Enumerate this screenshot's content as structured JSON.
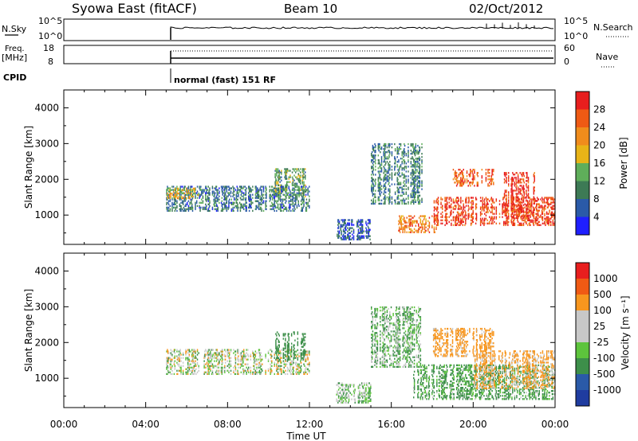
{
  "header": {
    "station": "Syowa East (fitACF)",
    "beam": "Beam 10",
    "date": "02/Oct/2012"
  },
  "noise_panel": {
    "left_label": "N.Sky",
    "left_ticks": [
      "10^5",
      "10^0"
    ],
    "right_ticks": [
      "10^5",
      "10^0"
    ],
    "right_label": "N.Search"
  },
  "freq_panel": {
    "left_label_1": "Freq.",
    "left_label_2": "[MHz]",
    "left_ticks": [
      "18",
      "8"
    ],
    "right_ticks": [
      "60",
      "0"
    ],
    "right_label": "Nave"
  },
  "cpid": {
    "label": "CPID",
    "value": "normal (fast) 151 RF"
  },
  "colors": {
    "power_scale": [
      "#1f1fff",
      "#2a5aa8",
      "#3d7a55",
      "#5fae5a",
      "#e8b417",
      "#f08c1c",
      "#ef5a14",
      "#e81e1e"
    ],
    "velocity_scale": [
      "#e81e1e",
      "#f05a14",
      "#f7961e",
      "#c8c8c8",
      "#c8c8c8",
      "#5dc43c",
      "#3d8f4a",
      "#2a5aa8",
      "#1f3ca0"
    ]
  },
  "chart_data": [
    {
      "type": "heatmap",
      "panel": "power",
      "ylabel": "Slant Range [km]",
      "xlabel": "Time UT",
      "xlim": [
        "00:00",
        "24:00"
      ],
      "ylim": [
        180,
        4500
      ],
      "x_ticks": [
        "00:00",
        "04:00",
        "08:00",
        "12:00",
        "16:00",
        "20:00",
        "00:00"
      ],
      "y_ticks": [
        "1000",
        "2000",
        "3000",
        "4000"
      ],
      "colorbar": {
        "label": "Power [dB]",
        "ticks": [
          "4",
          "8",
          "12",
          "16",
          "20",
          "24",
          "28"
        ],
        "range": [
          0,
          30
        ]
      },
      "echo_regions": [
        {
          "t_start": 5.0,
          "t_end": 12.0,
          "r_min": 1100,
          "r_max": 1800,
          "value": 8
        },
        {
          "t_start": 5.0,
          "t_end": 6.6,
          "r_min": 1450,
          "r_max": 1750,
          "value": 18
        },
        {
          "t_start": 10.3,
          "t_end": 11.8,
          "r_min": 1500,
          "r_max": 2300,
          "value": 12
        },
        {
          "t_start": 13.3,
          "t_end": 15.0,
          "r_min": 300,
          "r_max": 900,
          "value": 6
        },
        {
          "t_start": 15.0,
          "t_end": 17.5,
          "r_min": 1300,
          "r_max": 3000,
          "value": 9
        },
        {
          "t_start": 16.3,
          "t_end": 18.2,
          "r_min": 500,
          "r_max": 1000,
          "value": 22
        },
        {
          "t_start": 18.0,
          "t_end": 24.0,
          "r_min": 700,
          "r_max": 1500,
          "value": 26
        },
        {
          "t_start": 19.0,
          "t_end": 21.0,
          "r_min": 1800,
          "r_max": 2300,
          "value": 24
        },
        {
          "t_start": 21.5,
          "t_end": 23.0,
          "r_min": 900,
          "r_max": 2200,
          "value": 27
        }
      ]
    },
    {
      "type": "heatmap",
      "panel": "velocity",
      "ylabel": "Slant Range [km]",
      "xlabel": "Time UT",
      "xlim": [
        "00:00",
        "24:00"
      ],
      "ylim": [
        180,
        4500
      ],
      "x_ticks": [
        "00:00",
        "04:00",
        "08:00",
        "12:00",
        "16:00",
        "20:00",
        "00:00"
      ],
      "y_ticks": [
        "1000",
        "2000",
        "3000",
        "4000"
      ],
      "colorbar": {
        "label": "Velocity [m s⁻¹]",
        "ticks": [
          "1000",
          "500",
          "100",
          "25",
          "-25",
          "-100",
          "-500",
          "-1000"
        ]
      },
      "echo_regions": [
        {
          "t_start": 5.0,
          "t_end": 12.0,
          "r_min": 1100,
          "r_max": 1800,
          "value": 0
        },
        {
          "t_start": 10.3,
          "t_end": 11.8,
          "r_min": 1500,
          "r_max": 2300,
          "value": 300
        },
        {
          "t_start": 13.3,
          "t_end": 15.0,
          "r_min": 300,
          "r_max": 900,
          "value": 50
        },
        {
          "t_start": 15.0,
          "t_end": 17.5,
          "r_min": 1300,
          "r_max": 3000,
          "value": 80
        },
        {
          "t_start": 17.0,
          "t_end": 24.0,
          "r_min": 400,
          "r_max": 1400,
          "value": 150
        },
        {
          "t_start": 18.0,
          "t_end": 21.0,
          "r_min": 1600,
          "r_max": 2400,
          "value": -200
        },
        {
          "t_start": 20.0,
          "t_end": 24.0,
          "r_min": 700,
          "r_max": 1800,
          "value": -150
        }
      ]
    }
  ]
}
